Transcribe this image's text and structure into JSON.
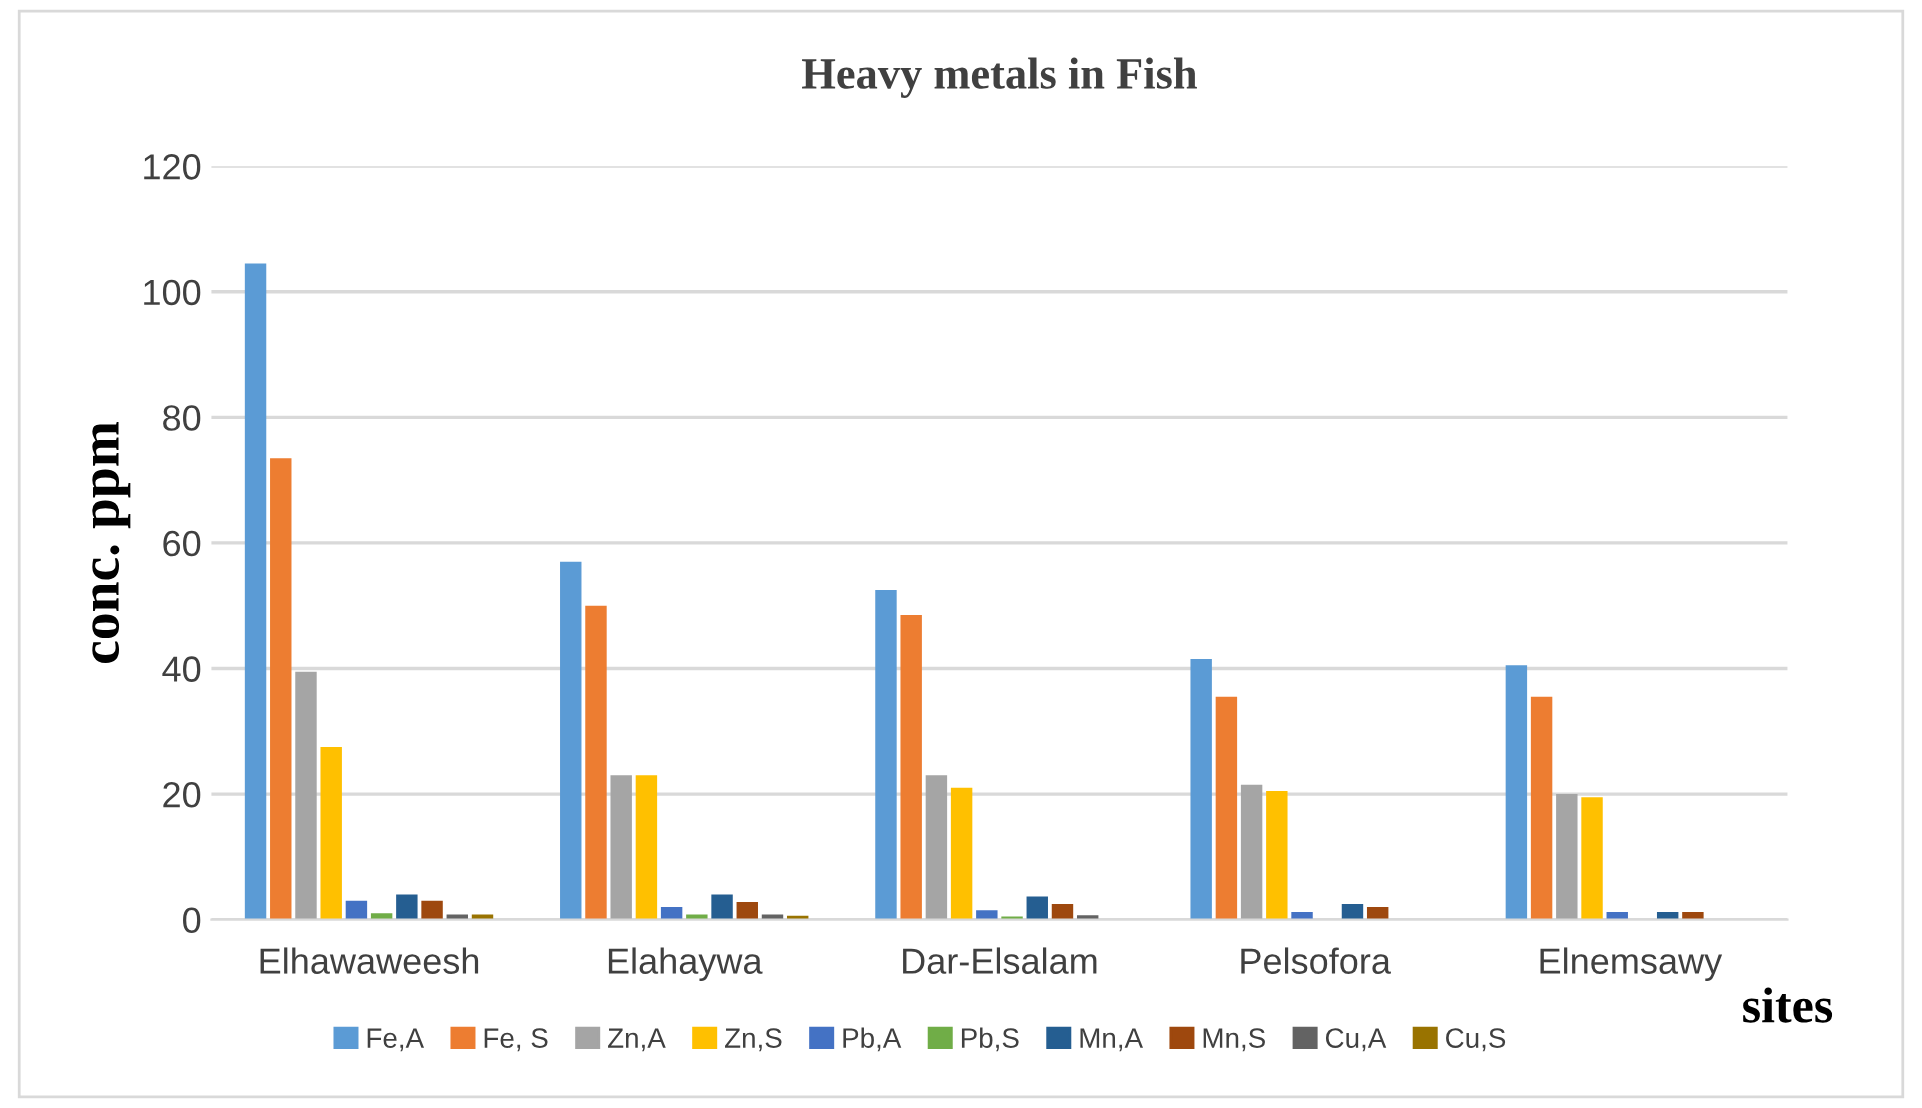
{
  "chart_data": {
    "type": "bar",
    "title": "Heavy metals in Fish",
    "xlabel": "sites",
    "ylabel": "conc. ppm",
    "categories": [
      "Elhawaweesh",
      "Elahaywa",
      "Dar-Elsalam",
      "Pelsofora",
      "Elnemsawy"
    ],
    "series": [
      {
        "name": "Fe,A",
        "color": "#5b9bd5",
        "values": [
          104.5,
          57,
          52.5,
          41.5,
          40.5
        ]
      },
      {
        "name": "Fe, S",
        "color": "#ed7d31",
        "values": [
          73.5,
          50,
          48.5,
          35.5,
          35.5
        ]
      },
      {
        "name": "Zn,A",
        "color": "#a5a5a5",
        "values": [
          39.5,
          23,
          23,
          21.5,
          20
        ]
      },
      {
        "name": "Zn,S",
        "color": "#ffc000",
        "values": [
          27.5,
          23,
          21,
          20.5,
          19.5
        ]
      },
      {
        "name": "Pb,A",
        "color": "#4472c4",
        "values": [
          3,
          2,
          1.5,
          1.2,
          1.2
        ]
      },
      {
        "name": "Pb,S",
        "color": "#70ad47",
        "values": [
          1,
          0.8,
          0.5,
          null,
          null
        ]
      },
      {
        "name": "Mn,A",
        "color": "#255e91",
        "values": [
          4,
          4,
          3.7,
          2.5,
          1.2
        ]
      },
      {
        "name": "Mn,S",
        "color": "#9e480e",
        "values": [
          3,
          2.8,
          2.5,
          2,
          1.2
        ]
      },
      {
        "name": "Cu,A",
        "color": "#636363",
        "values": [
          0.8,
          0.8,
          0.7,
          null,
          null
        ]
      },
      {
        "name": "Cu,S",
        "color": "#997300",
        "values": [
          0.8,
          0.6,
          null,
          null,
          null
        ]
      }
    ],
    "ylim": [
      0,
      120
    ],
    "yticks": [
      0,
      20,
      40,
      60,
      80,
      100,
      120
    ],
    "grid": "y",
    "legend": "bottom"
  }
}
